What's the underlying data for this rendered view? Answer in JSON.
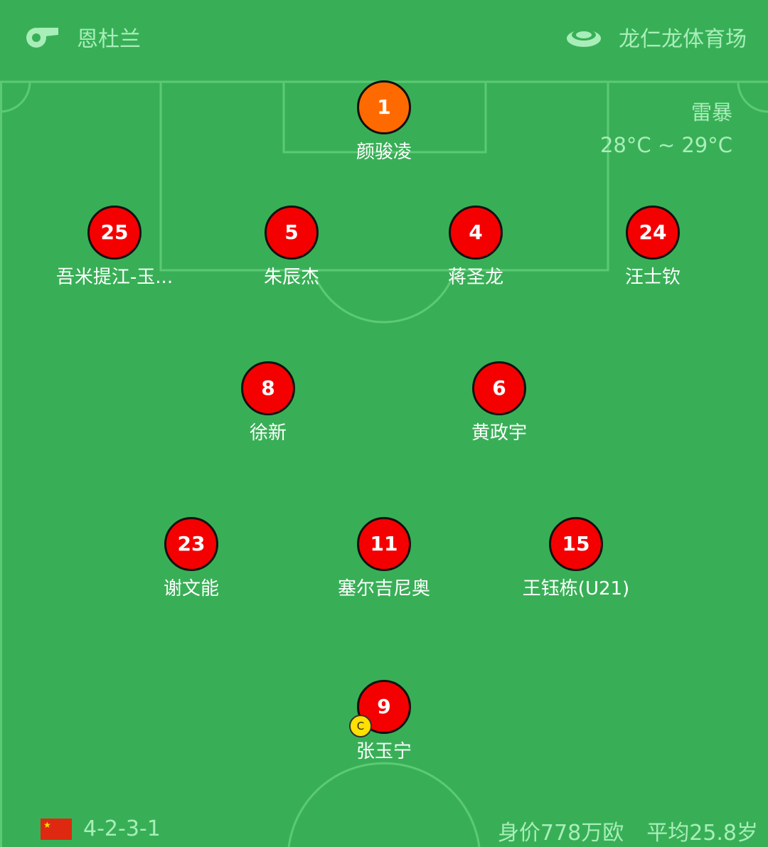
{
  "header": {
    "referee_icon": "whistle-icon",
    "referee": "恩杜兰",
    "venue_icon": "stadium-icon",
    "venue": "龙仁龙体育场"
  },
  "weather": {
    "condition": "雷暴",
    "temperature": "28°C ~ 29°C"
  },
  "players": [
    {
      "number": "1",
      "name": "颜骏凌",
      "color": "#ff6a00"
    },
    {
      "number": "25",
      "name": "吾米提江-玉...",
      "color": "#f50000"
    },
    {
      "number": "5",
      "name": "朱辰杰",
      "color": "#f50000"
    },
    {
      "number": "4",
      "name": "蒋圣龙",
      "color": "#f50000"
    },
    {
      "number": "24",
      "name": "汪士钦",
      "color": "#f50000"
    },
    {
      "number": "8",
      "name": "徐新",
      "color": "#f50000"
    },
    {
      "number": "6",
      "name": "黄政宇",
      "color": "#f50000"
    },
    {
      "number": "23",
      "name": "谢文能",
      "color": "#f50000"
    },
    {
      "number": "11",
      "name": "塞尔吉尼奥",
      "color": "#f50000"
    },
    {
      "number": "15",
      "name": "王钰栋(U21)",
      "color": "#f50000"
    },
    {
      "number": "9",
      "name": "张玉宁",
      "color": "#f50000",
      "captain_badge": "C"
    }
  ],
  "footer": {
    "flag_icon": "china-flag-icon",
    "formation": "4-2-3-1",
    "market_value": "身价778万欧",
    "average_age": "平均25.8岁"
  }
}
